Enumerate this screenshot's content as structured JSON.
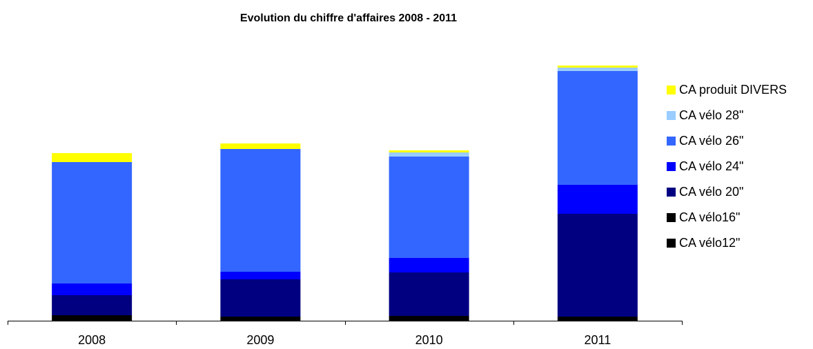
{
  "chart_data": {
    "type": "bar",
    "stacked": true,
    "title": "Evolution du chiffre d'affaires 2008 - 2011",
    "xlabel": "",
    "ylabel": "",
    "ylim": [
      0,
      370
    ],
    "y_axis_visible": false,
    "grid": false,
    "legend_position": "right",
    "categories": [
      "2008",
      "2009",
      "2010",
      "2011"
    ],
    "series": [
      {
        "name": "CA vélo12\"",
        "color": "#000000",
        "values": [
          0,
          0,
          0,
          0
        ]
      },
      {
        "name": "CA vélo16\"",
        "color": "#000000",
        "values": [
          8,
          6,
          7,
          6
        ]
      },
      {
        "name": "CA vélo 20\"",
        "color": "#000080",
        "values": [
          29,
          54,
          63,
          149
        ]
      },
      {
        "name": "CA vélo 24\"",
        "color": "#0000FF",
        "values": [
          17,
          11,
          21,
          42
        ]
      },
      {
        "name": "CA vélo 26\"",
        "color": "#3366FF",
        "values": [
          176,
          178,
          147,
          165
        ]
      },
      {
        "name": "CA vélo 28\"",
        "color": "#99CCFF",
        "values": [
          0,
          0,
          6,
          5
        ]
      },
      {
        "name": "CA produit DIVERS",
        "color": "#FFFF00",
        "values": [
          13,
          8,
          3,
          3
        ]
      }
    ]
  }
}
